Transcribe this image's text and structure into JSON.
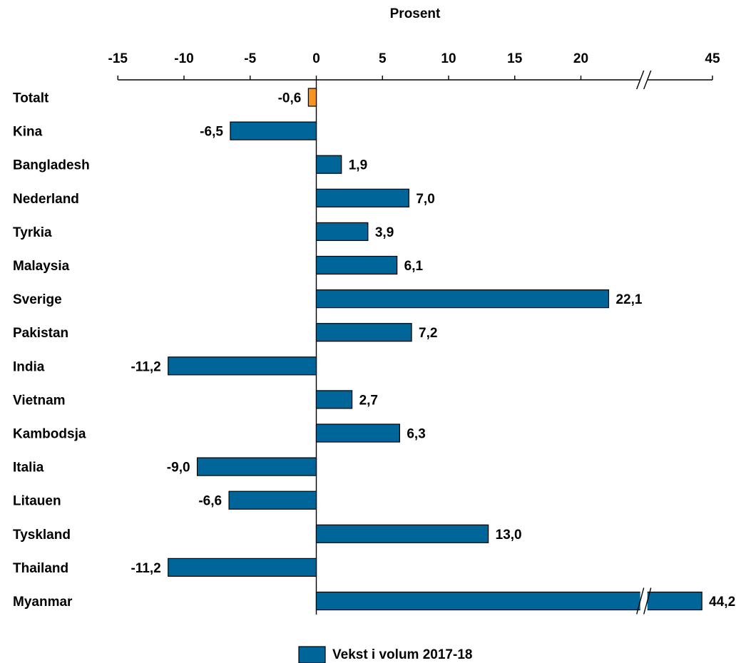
{
  "chart_data": {
    "type": "bar",
    "orientation": "horizontal",
    "axis_title": "Prosent",
    "xlim": [
      -15,
      45
    ],
    "axis_break": {
      "from": 24,
      "to": 43
    },
    "ticks": [
      -15,
      -10,
      -5,
      0,
      5,
      10,
      15,
      20,
      45
    ],
    "tick_labels": [
      "-15",
      "-10",
      "-5",
      "0",
      "5",
      "10",
      "15",
      "20",
      "45"
    ],
    "categories": [
      "Totalt",
      "Kina",
      "Bangladesh",
      "Nederland",
      "Tyrkia",
      "Malaysia",
      "Sverige",
      "Pakistan",
      "India",
      "Vietnam",
      "Kambodsja",
      "Italia",
      "Litauen",
      "Tyskland",
      "Thailand",
      "Myanmar"
    ],
    "values": [
      -0.6,
      -6.5,
      1.9,
      7.0,
      3.9,
      6.1,
      22.1,
      7.2,
      -11.2,
      2.7,
      6.3,
      -9.0,
      -6.6,
      13.0,
      -11.2,
      44.2
    ],
    "value_labels": [
      "-0,6",
      "-6,5",
      "1,9",
      "7,0",
      "3,9",
      "6,1",
      "22,1",
      "7,2",
      "-11,2",
      "2,7",
      "6,3",
      "-9,0",
      "-6,6",
      "13,0",
      "-11,2",
      "44,2"
    ],
    "highlight_index": 0,
    "legend": {
      "label": "Vekst i volum 2017-18",
      "placement": "bottom-center"
    },
    "colors": {
      "bar": "#006699",
      "highlight": "#F7941D",
      "stroke": "#000000"
    }
  }
}
